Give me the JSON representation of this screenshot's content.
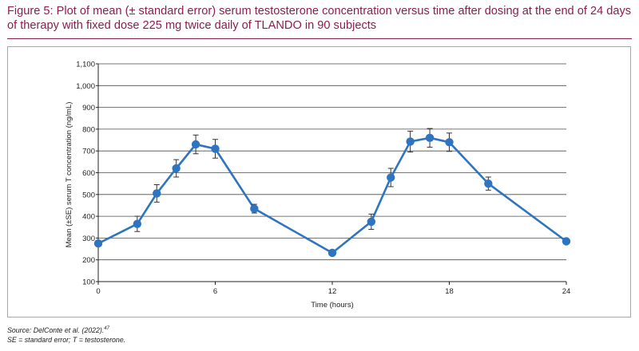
{
  "figure": {
    "title": "Figure 5: Plot of mean (± standard error) serum testosterone concentration versus time after dosing at the end of 24 days of therapy with fixed dose 225 mg twice daily of TLANDO in 90 subjects",
    "source_prefix": "Source: DelConte et al. (2022).",
    "source_ref": "47",
    "abbreviations": "SE = standard error; T = testosterone."
  },
  "colors": {
    "title": "#8b1e4e",
    "series": "#2e74c0",
    "grid": "#4a4a4a",
    "axis": "#222222"
  },
  "chart_data": {
    "type": "line",
    "title": "",
    "xlabel": "Time (hours)",
    "ylabel": "Mean (±SE) serum T concentration (ng/mL)",
    "xlim": [
      0,
      24
    ],
    "ylim": [
      100,
      1100
    ],
    "xticks": [
      0,
      6,
      12,
      18,
      24
    ],
    "xtick_labels": [
      "0",
      "6",
      "12",
      "18",
      "24"
    ],
    "yticks": [
      100,
      200,
      300,
      400,
      500,
      600,
      700,
      800,
      900,
      1000,
      1100
    ],
    "ytick_labels": [
      "100",
      "200",
      "300",
      "400",
      "500",
      "600",
      "700",
      "800",
      "900",
      "1,000",
      "1,100"
    ],
    "grid": "horizontal",
    "legend": "none",
    "series": [
      {
        "x": [
          0,
          2,
          3,
          4,
          5,
          6,
          8,
          12,
          14,
          15,
          16,
          17,
          18,
          20,
          24
        ],
        "y": [
          275,
          365,
          505,
          620,
          730,
          710,
          435,
          232,
          375,
          578,
          743,
          760,
          740,
          550,
          285
        ],
        "error": [
          8,
          35,
          40,
          40,
          43,
          43,
          20,
          12,
          35,
          42,
          48,
          43,
          42,
          30,
          8
        ]
      }
    ]
  }
}
